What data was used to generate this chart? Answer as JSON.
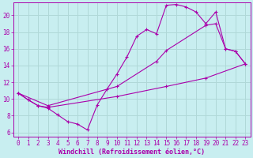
{
  "background_color": "#c8eef0",
  "grid_color": "#b0d8d8",
  "line_color": "#aa00aa",
  "xlabel": "Windchill (Refroidissement éolien,°C)",
  "xlabel_fontsize": 6.0,
  "tick_fontsize": 5.5,
  "ylim": [
    5.5,
    21.5
  ],
  "xlim": [
    -0.5,
    23.5
  ],
  "yticks": [
    6,
    8,
    10,
    12,
    14,
    16,
    18,
    20
  ],
  "xticks": [
    0,
    1,
    2,
    3,
    4,
    5,
    6,
    7,
    8,
    9,
    10,
    11,
    12,
    13,
    14,
    15,
    16,
    17,
    18,
    19,
    20,
    21,
    22,
    23
  ],
  "series1": [
    [
      0,
      10.7
    ],
    [
      1,
      9.9
    ],
    [
      2,
      9.2
    ],
    [
      3,
      8.9
    ],
    [
      4,
      8.1
    ],
    [
      5,
      7.3
    ],
    [
      6,
      7.0
    ],
    [
      7,
      6.3
    ],
    [
      8,
      9.3
    ],
    [
      9,
      11.2
    ],
    [
      10,
      13.0
    ],
    [
      11,
      15.0
    ],
    [
      12,
      17.5
    ],
    [
      13,
      18.3
    ],
    [
      14,
      17.8
    ],
    [
      15,
      21.2
    ],
    [
      16,
      21.3
    ],
    [
      17,
      21.0
    ],
    [
      18,
      20.4
    ],
    [
      19,
      19.0
    ],
    [
      20,
      20.4
    ],
    [
      21,
      16.0
    ],
    [
      22,
      15.7
    ],
    [
      23,
      14.2
    ]
  ],
  "series2": [
    [
      0,
      10.7
    ],
    [
      1,
      9.9
    ],
    [
      2,
      9.2
    ],
    [
      3,
      9.0
    ],
    [
      10,
      10.3
    ],
    [
      15,
      11.5
    ],
    [
      19,
      12.5
    ],
    [
      23,
      14.2
    ]
  ],
  "series3": [
    [
      0,
      10.7
    ],
    [
      3,
      9.2
    ],
    [
      10,
      11.5
    ],
    [
      14,
      14.5
    ],
    [
      15,
      15.8
    ],
    [
      19,
      18.8
    ],
    [
      20,
      19.0
    ],
    [
      21,
      16.0
    ],
    [
      22,
      15.7
    ],
    [
      23,
      14.2
    ]
  ]
}
